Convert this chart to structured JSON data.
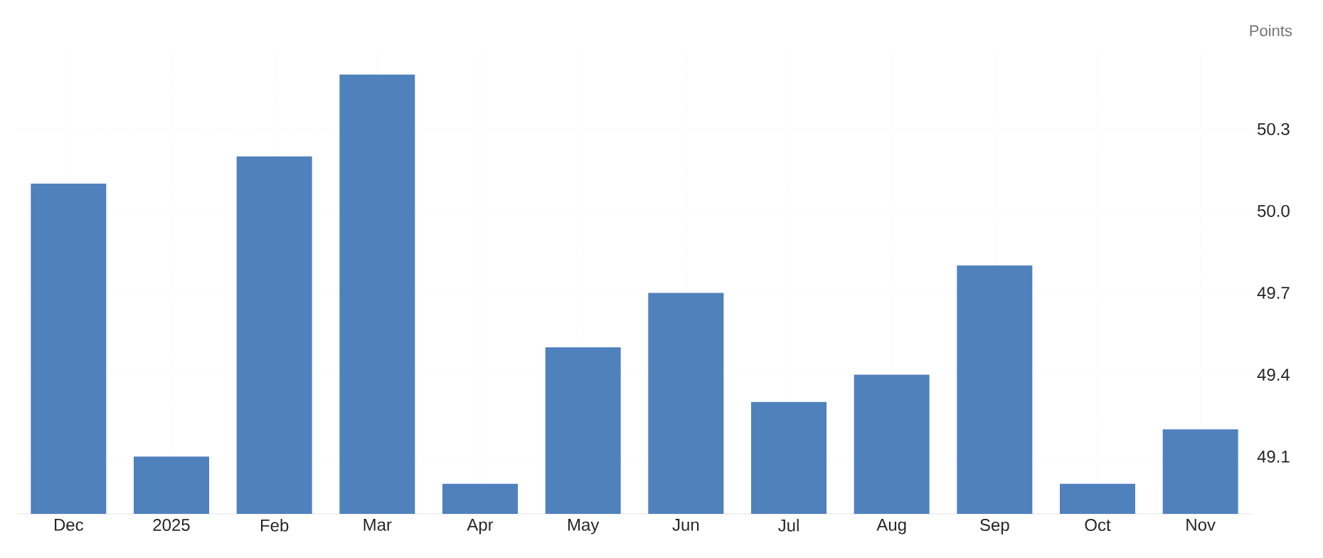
{
  "chart_data": {
    "type": "bar",
    "ylabel": "Points",
    "categories": [
      "Dec",
      "2025",
      "Feb",
      "Mar",
      "Apr",
      "May",
      "Jun",
      "Jul",
      "Aug",
      "Sep",
      "Oct",
      "Nov"
    ],
    "values": [
      50.1,
      49.1,
      50.2,
      50.5,
      49.0,
      49.5,
      49.7,
      49.3,
      49.4,
      49.8,
      49.0,
      49.2
    ],
    "color": "#4f81bd",
    "ylim": [
      48.89,
      50.58
    ],
    "yticks": [
      49.1,
      49.4,
      49.7,
      {
        "value": 50.0,
        "label": "50.0"
      },
      50.3
    ],
    "grid": true
  }
}
